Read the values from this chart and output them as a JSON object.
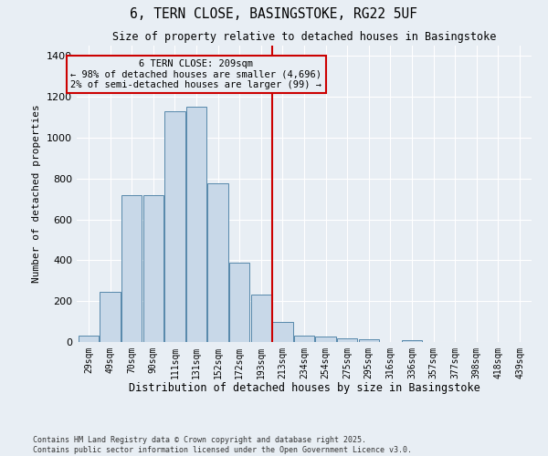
{
  "title": "6, TERN CLOSE, BASINGSTOKE, RG22 5UF",
  "subtitle": "Size of property relative to detached houses in Basingstoke",
  "xlabel": "Distribution of detached houses by size in Basingstoke",
  "ylabel": "Number of detached properties",
  "categories": [
    "29sqm",
    "49sqm",
    "70sqm",
    "90sqm",
    "111sqm",
    "131sqm",
    "152sqm",
    "172sqm",
    "193sqm",
    "213sqm",
    "234sqm",
    "254sqm",
    "275sqm",
    "295sqm",
    "316sqm",
    "336sqm",
    "357sqm",
    "377sqm",
    "398sqm",
    "418sqm",
    "439sqm"
  ],
  "values": [
    30,
    245,
    720,
    720,
    1130,
    1150,
    775,
    390,
    230,
    100,
    30,
    25,
    20,
    15,
    0,
    8,
    0,
    0,
    0,
    0,
    0
  ],
  "bar_color": "#c8d8e8",
  "bar_edge_color": "#5588aa",
  "vline_position": 9,
  "vline_color": "#cc0000",
  "annotation_title": "6 TERN CLOSE: 209sqm",
  "annotation_line1": "← 98% of detached houses are smaller (4,696)",
  "annotation_line2": "2% of semi-detached houses are larger (99) →",
  "annotation_box_color": "#cc0000",
  "ylim": [
    0,
    1450
  ],
  "yticks": [
    0,
    200,
    400,
    600,
    800,
    1000,
    1200,
    1400
  ],
  "bg_color": "#e8eef4",
  "grid_color": "#ffffff",
  "footer_line1": "Contains HM Land Registry data © Crown copyright and database right 2025.",
  "footer_line2": "Contains public sector information licensed under the Open Government Licence v3.0."
}
